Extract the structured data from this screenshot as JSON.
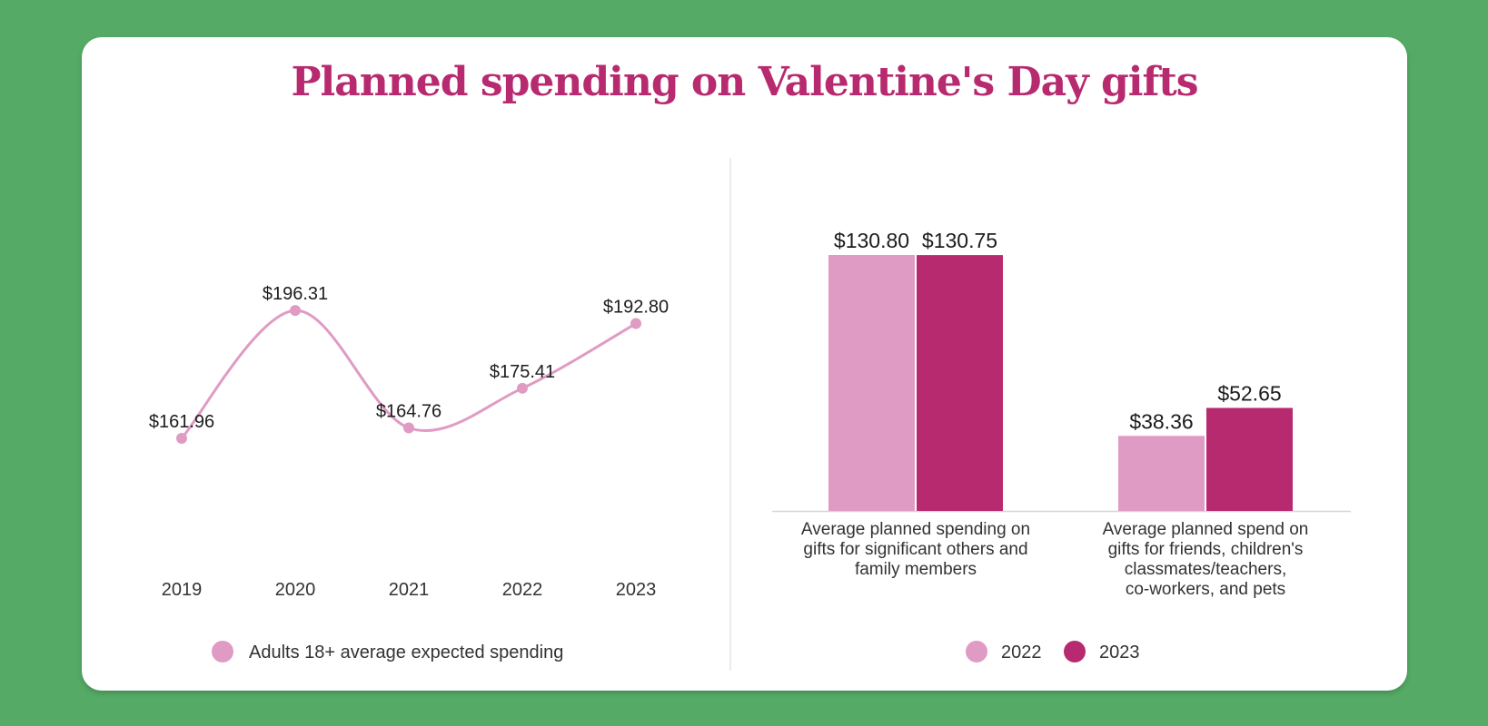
{
  "title": "Planned spending on Valentine's Day gifts",
  "colors": {
    "background": "#55ab66",
    "title": "#b72a6f",
    "light_pink": "#e09bc4",
    "magenta": "#b72a6f"
  },
  "chart_data": [
    {
      "type": "line",
      "x": [
        "2019",
        "2020",
        "2021",
        "2022",
        "2023"
      ],
      "values": [
        161.96,
        196.31,
        164.76,
        175.41,
        192.8
      ],
      "data_labels": [
        "$161.96",
        "$196.31",
        "$164.76",
        "$175.41",
        "$192.80"
      ],
      "series_name": "Adults 18+ average expected spending",
      "legend_position": "bottom-center",
      "grid": false
    },
    {
      "type": "bar",
      "categories": [
        [
          "Average planned spending on",
          "gifts for significant others and",
          "family members"
        ],
        [
          "Average planned spend on",
          "gifts for friends, children's",
          "classmates/teachers,",
          "co-workers, and pets"
        ]
      ],
      "series": [
        {
          "name": "2022",
          "values": [
            130.8,
            38.36
          ],
          "labels": [
            "$130.80",
            "$38.36"
          ]
        },
        {
          "name": "2023",
          "values": [
            130.75,
            52.65
          ],
          "labels": [
            "$130.75",
            "$52.65"
          ]
        }
      ],
      "ylim": [
        0,
        130.8
      ],
      "legend_position": "bottom-center",
      "grid": false
    }
  ]
}
